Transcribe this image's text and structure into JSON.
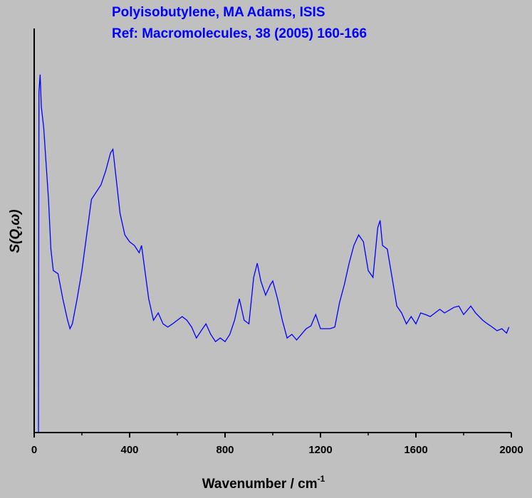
{
  "chart_data": {
    "type": "line",
    "title": "Polyisobutylene, MA Adams, ISIS",
    "subtitle": "Ref: Macromolecules, 38 (2005) 160-166",
    "x_label": "Wavenumber / cm",
    "x_label_superscript": "-1",
    "y_label": "S(Q,ω)",
    "xlim": [
      0,
      2000
    ],
    "ylim": [
      0,
      100
    ],
    "xticks": [
      0,
      400,
      800,
      1200,
      1600,
      2000
    ],
    "xminorticks": [
      200,
      600,
      1000,
      1400,
      1800
    ],
    "grid": false,
    "x": [
      18,
      20,
      25,
      30,
      40,
      50,
      60,
      70,
      80,
      100,
      120,
      140,
      150,
      160,
      180,
      200,
      220,
      240,
      260,
      280,
      300,
      320,
      330,
      340,
      360,
      380,
      400,
      420,
      440,
      450,
      460,
      480,
      500,
      520,
      540,
      560,
      580,
      600,
      620,
      640,
      660,
      680,
      700,
      720,
      740,
      760,
      780,
      800,
      820,
      840,
      860,
      880,
      900,
      920,
      935,
      950,
      970,
      990,
      1000,
      1020,
      1040,
      1060,
      1080,
      1100,
      1120,
      1140,
      1160,
      1180,
      1200,
      1220,
      1240,
      1260,
      1280,
      1300,
      1320,
      1340,
      1360,
      1380,
      1400,
      1420,
      1440,
      1450,
      1460,
      1480,
      1500,
      1520,
      1540,
      1560,
      1580,
      1600,
      1620,
      1640,
      1660,
      1680,
      1700,
      1720,
      1760,
      1780,
      1800,
      1830,
      1850,
      1880,
      1900,
      1920,
      1940,
      1960,
      1980,
      1990
    ],
    "series": [
      {
        "color": "#0000ff",
        "values": [
          0,
          84.2,
          88.6,
          80.6,
          75.4,
          66.5,
          57.7,
          45.4,
          40.1,
          39.3,
          33.1,
          27.8,
          25.7,
          26.9,
          33.1,
          40.1,
          48.9,
          57.7,
          59.5,
          61.3,
          64.8,
          69.2,
          70.1,
          64.8,
          54.2,
          48.9,
          47.2,
          46.3,
          44.5,
          46.3,
          41.9,
          33.1,
          27.8,
          29.6,
          26.9,
          26.1,
          26.9,
          27.8,
          28.7,
          27.8,
          26.1,
          23.4,
          25.2,
          26.9,
          24.3,
          22.5,
          23.4,
          22.5,
          24.3,
          27.8,
          33.1,
          27.8,
          26.9,
          38.4,
          41.9,
          37.5,
          34.0,
          36.6,
          37.5,
          33.1,
          27.8,
          23.4,
          24.3,
          22.9,
          24.3,
          25.7,
          26.4,
          29.2,
          25.7,
          25.7,
          25.7,
          26.1,
          32.2,
          36.6,
          41.9,
          46.3,
          48.9,
          47.2,
          40.1,
          38.4,
          50.7,
          52.5,
          46.3,
          45.4,
          38.4,
          31.3,
          29.6,
          26.9,
          28.7,
          26.9,
          29.6,
          29.2,
          28.7,
          29.6,
          30.5,
          29.6,
          31.0,
          31.3,
          29.2,
          31.3,
          29.6,
          27.8,
          26.9,
          26.1,
          25.2,
          25.7,
          24.6,
          26.1
        ]
      }
    ]
  }
}
